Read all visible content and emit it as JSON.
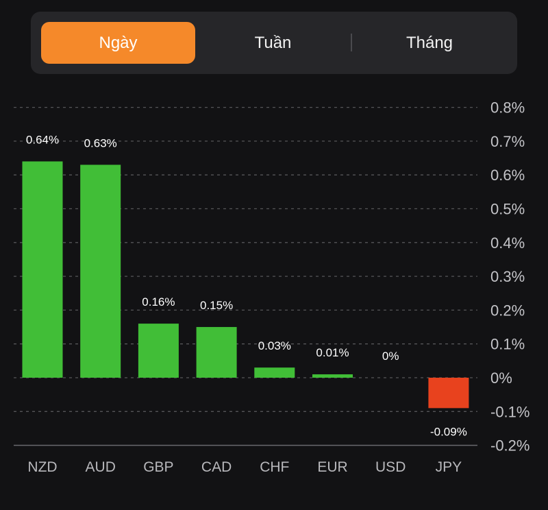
{
  "tabs": [
    {
      "label": "Ngày",
      "active": true
    },
    {
      "label": "Tuần",
      "active": false
    },
    {
      "label": "Tháng",
      "active": false
    }
  ],
  "colors": {
    "positive": "#41be37",
    "negative": "#e8421e",
    "accent": "#f5892a",
    "grid": "#555558"
  },
  "chart_data": {
    "type": "bar",
    "categories": [
      "NZD",
      "AUD",
      "GBP",
      "CAD",
      "CHF",
      "EUR",
      "USD",
      "JPY"
    ],
    "values": [
      0.64,
      0.63,
      0.16,
      0.15,
      0.03,
      0.01,
      0,
      -0.09
    ],
    "value_labels": [
      "0.64%",
      "0.63%",
      "0.16%",
      "0.15%",
      "0.03%",
      "0.01%",
      "0%",
      "-0.09%"
    ],
    "yticks": [
      0.8,
      0.7,
      0.6,
      0.5,
      0.4,
      0.3,
      0.2,
      0.1,
      0,
      -0.1,
      -0.2
    ],
    "ytick_labels": [
      "0.8%",
      "0.7%",
      "0.6%",
      "0.5%",
      "0.4%",
      "0.3%",
      "0.2%",
      "0.1%",
      "0%",
      "-0.1%",
      "-0.2%"
    ],
    "ylim": [
      -0.2,
      0.8
    ],
    "ylabel_position": "right",
    "grid": true,
    "title": "",
    "xlabel": "",
    "ylabel": ""
  }
}
